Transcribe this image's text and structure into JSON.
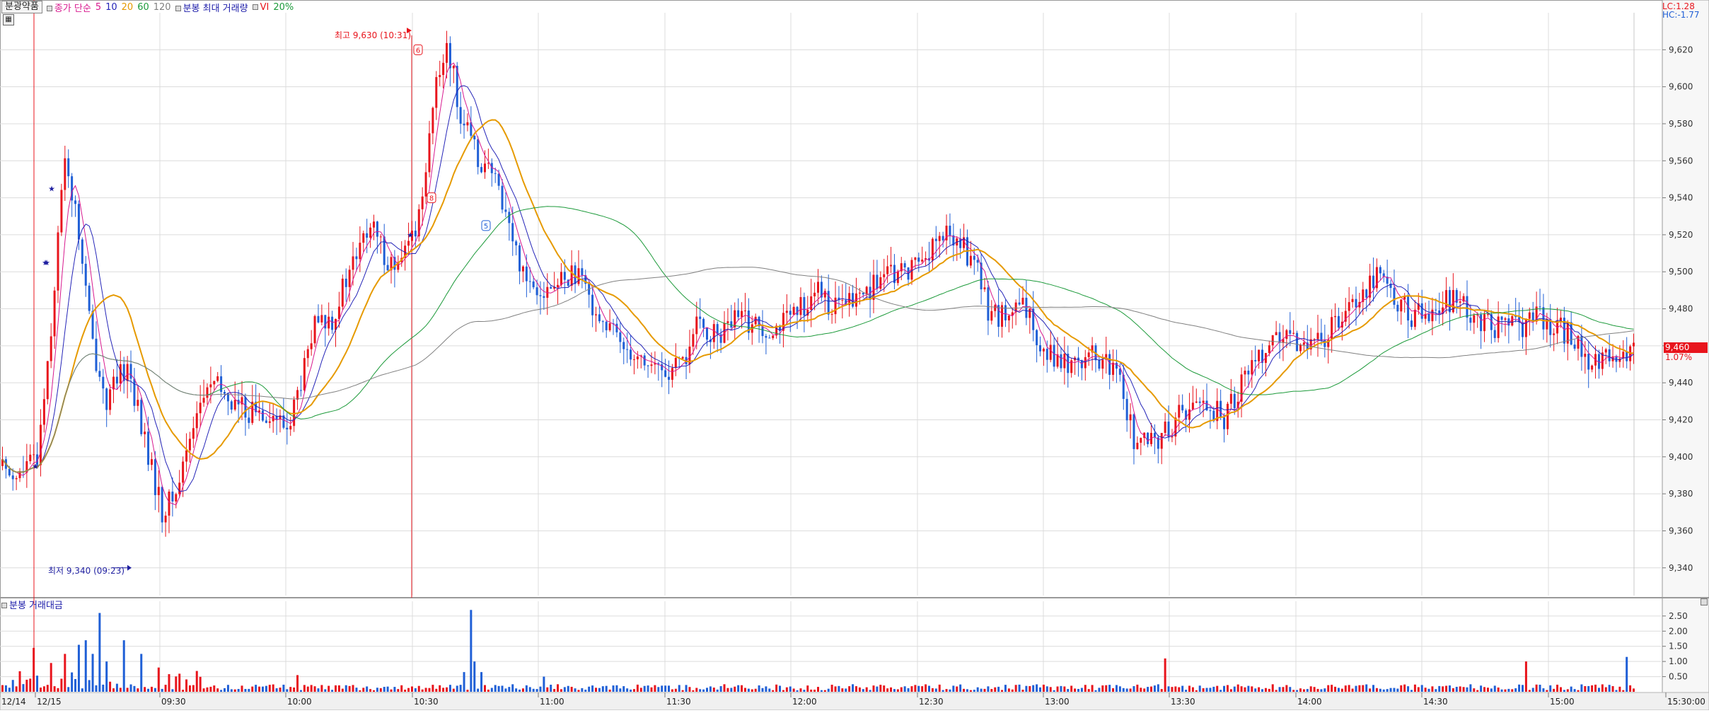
{
  "legend": {
    "product": "분광약품",
    "ma_label": "종가 단순",
    "ma_periods": [
      {
        "label": "5",
        "color": "#d8198f"
      },
      {
        "label": "10",
        "color": "#2424b8"
      },
      {
        "label": "20",
        "color": "#e69a00"
      },
      {
        "label": "60",
        "color": "#1c9a3a"
      },
      {
        "label": "120",
        "color": "#808080"
      }
    ],
    "max_volume_label": "분봉 최대 거래량",
    "vi_label": "VI",
    "vi_value": "20%"
  },
  "right_tags": {
    "lc": "LC:1.28",
    "hc": "HC:-1.77",
    "current_price": "9,460",
    "change_pct": "1.07%"
  },
  "annotations": {
    "high": "최고 9,630 (10:31)",
    "low": "최저 9,340 (09:23)"
  },
  "markers": [
    "6",
    "8",
    "5"
  ],
  "sub_chart_title": "분봉 거래대금",
  "colors": {
    "up": "#e8141c",
    "down": "#1f5fd6",
    "grid": "#dcdcdc"
  },
  "chart_data": {
    "type": "candlestick",
    "price_axis": {
      "ticks": [
        9340,
        9360,
        9380,
        9400,
        9420,
        9440,
        9460,
        9480,
        9500,
        9520,
        9540,
        9560,
        9580,
        9600,
        9620
      ],
      "labels": [
        "9,340",
        "9,360",
        "9,380",
        "9,400",
        "9,420",
        "9,440",
        "9,460",
        "9,480",
        "9,500",
        "9,520",
        "9,540",
        "9,560",
        "9,580",
        "9,600",
        "9,620"
      ],
      "range": [
        9325,
        9640
      ]
    },
    "volume_axis": {
      "ticks": [
        0.5,
        1.0,
        1.5,
        2.0,
        2.5
      ],
      "labels": [
        "0.50",
        "1.00",
        "1.50",
        "2.00",
        "2.50"
      ],
      "range": [
        0,
        2.8
      ]
    },
    "time_axis": {
      "labels": [
        "12/14",
        "12/15",
        "09:30",
        "10:00",
        "10:30",
        "11:00",
        "11:30",
        "12:00",
        "12:30",
        "13:00",
        "13:30",
        "14:00",
        "14:30",
        "15:00",
        "15:30:00"
      ]
    },
    "price_keyframes": [
      [
        0,
        9395
      ],
      [
        5,
        9390
      ],
      [
        10,
        9400
      ],
      [
        14,
        9470
      ],
      [
        18,
        9565
      ],
      [
        22,
        9520
      ],
      [
        26,
        9460
      ],
      [
        30,
        9430
      ],
      [
        36,
        9450
      ],
      [
        42,
        9400
      ],
      [
        46,
        9370
      ],
      [
        50,
        9380
      ],
      [
        55,
        9420
      ],
      [
        60,
        9440
      ],
      [
        66,
        9430
      ],
      [
        70,
        9425
      ],
      [
        76,
        9425
      ],
      [
        82,
        9415
      ],
      [
        86,
        9440
      ],
      [
        90,
        9470
      ],
      [
        95,
        9475
      ],
      [
        100,
        9500
      ],
      [
        106,
        9525
      ],
      [
        110,
        9510
      ],
      [
        114,
        9500
      ],
      [
        120,
        9530
      ],
      [
        124,
        9590
      ],
      [
        128,
        9625
      ],
      [
        132,
        9585
      ],
      [
        136,
        9565
      ],
      [
        140,
        9555
      ],
      [
        144,
        9540
      ],
      [
        148,
        9510
      ],
      [
        152,
        9495
      ],
      [
        158,
        9490
      ],
      [
        164,
        9500
      ],
      [
        168,
        9490
      ],
      [
        174,
        9470
      ],
      [
        180,
        9460
      ],
      [
        186,
        9450
      ],
      [
        192,
        9445
      ],
      [
        196,
        9450
      ],
      [
        200,
        9470
      ],
      [
        206,
        9465
      ],
      [
        212,
        9475
      ],
      [
        220,
        9470
      ],
      [
        228,
        9475
      ],
      [
        234,
        9490
      ],
      [
        240,
        9480
      ],
      [
        246,
        9485
      ],
      [
        252,
        9495
      ],
      [
        260,
        9500
      ],
      [
        266,
        9510
      ],
      [
        272,
        9520
      ],
      [
        276,
        9515
      ],
      [
        280,
        9505
      ],
      [
        284,
        9480
      ],
      [
        288,
        9475
      ],
      [
        294,
        9480
      ],
      [
        300,
        9460
      ],
      [
        306,
        9450
      ],
      [
        312,
        9455
      ],
      [
        318,
        9450
      ],
      [
        322,
        9440
      ],
      [
        326,
        9410
      ],
      [
        330,
        9405
      ],
      [
        336,
        9415
      ],
      [
        340,
        9425
      ],
      [
        346,
        9430
      ],
      [
        352,
        9420
      ],
      [
        358,
        9445
      ],
      [
        362,
        9455
      ],
      [
        366,
        9465
      ],
      [
        372,
        9460
      ],
      [
        376,
        9465
      ],
      [
        380,
        9460
      ],
      [
        386,
        9480
      ],
      [
        392,
        9490
      ],
      [
        396,
        9500
      ],
      [
        400,
        9490
      ],
      [
        406,
        9475
      ],
      [
        412,
        9480
      ],
      [
        418,
        9485
      ],
      [
        424,
        9475
      ],
      [
        430,
        9470
      ],
      [
        436,
        9470
      ],
      [
        442,
        9475
      ],
      [
        448,
        9470
      ],
      [
        452,
        9465
      ],
      [
        456,
        9455
      ],
      [
        460,
        9450
      ],
      [
        466,
        9455
      ],
      [
        470,
        9455
      ]
    ],
    "max_vi_marker_value": 9630,
    "min_vi_marker_value": 9340
  }
}
